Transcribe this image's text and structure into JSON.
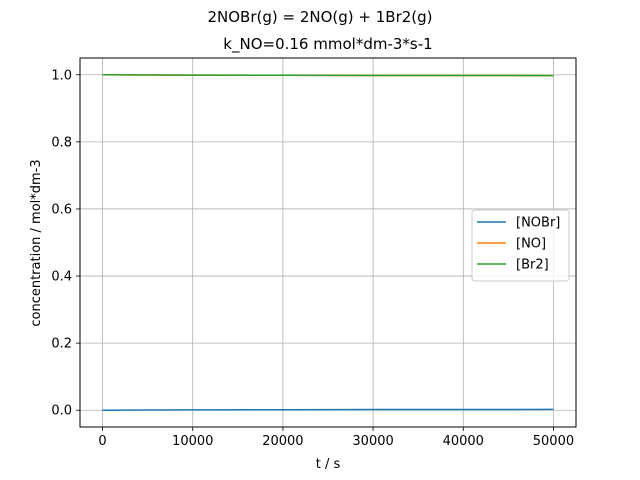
{
  "chart_data": {
    "type": "line",
    "suptitle": "2NOBr(g) = 2NO(g) + 1Br2(g)",
    "title": "k_NO=0.16 mmol*dm-3*s-1",
    "xlabel": "t / s",
    "ylabel": "concentration / mol*dm-3",
    "xlim": [
      -2500,
      52500
    ],
    "ylim": [
      -0.05,
      1.05
    ],
    "xticks": [
      0,
      10000,
      20000,
      30000,
      40000,
      50000
    ],
    "xtick_labels": [
      "0",
      "10000",
      "20000",
      "30000",
      "40000",
      "50000"
    ],
    "yticks": [
      0.0,
      0.2,
      0.4,
      0.6,
      0.8,
      1.0
    ],
    "ytick_labels": [
      "0.0",
      "0.2",
      "0.4",
      "0.6",
      "0.8",
      "1.0"
    ],
    "grid": true,
    "legend_position": "center-right",
    "series": [
      {
        "name": "[NOBr]",
        "color": "#1f77b4",
        "x": [
          0,
          5000,
          10000,
          20000,
          30000,
          40000,
          50000
        ],
        "y": [
          0.0,
          0.0005,
          0.001,
          0.0015,
          0.002,
          0.0022,
          0.0025
        ]
      },
      {
        "name": "[NO]",
        "color": "#ff7f0e",
        "x": [
          0,
          5000,
          10000,
          20000,
          30000,
          40000,
          50000
        ],
        "y": [
          1.0,
          0.9995,
          0.999,
          0.9985,
          0.998,
          0.9978,
          0.9975
        ]
      },
      {
        "name": "[Br2]",
        "color": "#2ca02c",
        "x": [
          0,
          5000,
          10000,
          20000,
          30000,
          40000,
          50000
        ],
        "y": [
          1.0,
          0.9995,
          0.999,
          0.9985,
          0.998,
          0.9978,
          0.9975
        ]
      }
    ]
  }
}
